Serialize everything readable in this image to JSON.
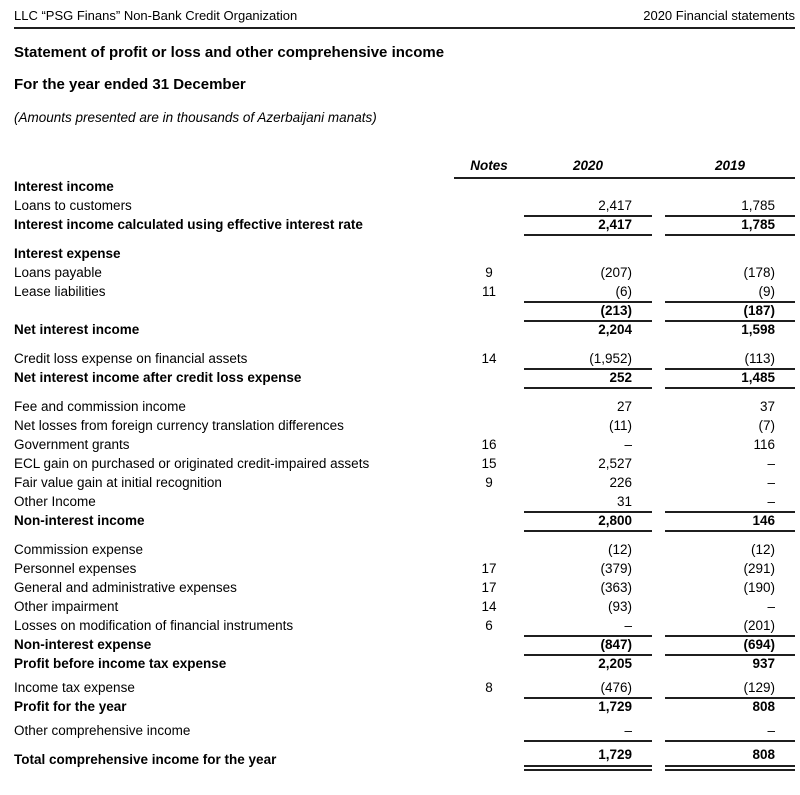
{
  "colors": {
    "background": "#ffffff",
    "text": "#000000",
    "rule_line": "#1f1f1f"
  },
  "header": {
    "left": "LLC “PSG Finans” Non-Bank Credit Organization",
    "right": "2020 Financial statements"
  },
  "title": "Statement of profit or loss and other comprehensive income",
  "subtitle": "For the year ended 31 December",
  "amounts_note": "(Amounts presented are in thousands of Azerbaijani manats)",
  "table": {
    "columns": {
      "notes": "Notes",
      "y2020": "2020",
      "y2019": "2019"
    },
    "rows": [
      {
        "label": "Interest income",
        "note": "",
        "v2020": "",
        "v2019": "",
        "bold": true,
        "underline": false,
        "double_underline": false,
        "gap": ""
      },
      {
        "label": "Loans to customers",
        "note": "",
        "v2020": "2,417",
        "v2019": "1,785",
        "bold": false,
        "underline": true,
        "double_underline": false,
        "gap": ""
      },
      {
        "label": "Interest income calculated using effective interest rate",
        "note": "",
        "v2020": "2,417",
        "v2019": "1,785",
        "bold": true,
        "underline": true,
        "double_underline": false,
        "gap": ""
      },
      {
        "label": "Interest expense",
        "note": "",
        "v2020": "",
        "v2019": "",
        "bold": true,
        "underline": false,
        "double_underline": false,
        "gap": "lg"
      },
      {
        "label": "Loans payable",
        "note": "9",
        "v2020": "(207)",
        "v2019": "(178)",
        "bold": false,
        "underline": false,
        "double_underline": false,
        "gap": ""
      },
      {
        "label": "Lease liabilities",
        "note": "11",
        "v2020": "(6)",
        "v2019": "(9)",
        "bold": false,
        "underline": true,
        "double_underline": false,
        "gap": ""
      },
      {
        "label": "",
        "note": "",
        "v2020": "(213)",
        "v2019": "(187)",
        "bold": true,
        "underline": true,
        "double_underline": false,
        "gap": ""
      },
      {
        "label": "Net interest income",
        "note": "",
        "v2020": "2,204",
        "v2019": "1,598",
        "bold": true,
        "underline": false,
        "double_underline": false,
        "gap": ""
      },
      {
        "label": "Credit loss expense on financial assets",
        "note": "14",
        "v2020": "(1,952)",
        "v2019": "(113)",
        "bold": false,
        "underline": true,
        "double_underline": false,
        "gap": "lg"
      },
      {
        "label": "Net interest income after credit loss expense",
        "note": "",
        "v2020": "252",
        "v2019": "1,485",
        "bold": true,
        "underline": true,
        "double_underline": false,
        "gap": ""
      },
      {
        "label": "Fee and commission income",
        "note": "",
        "v2020": "27",
        "v2019": "37",
        "bold": false,
        "underline": false,
        "double_underline": false,
        "gap": "lg"
      },
      {
        "label": "Net losses from foreign currency translation differences",
        "note": "",
        "v2020": "(11)",
        "v2019": "(7)",
        "bold": false,
        "underline": false,
        "double_underline": false,
        "gap": ""
      },
      {
        "label": "Government grants",
        "note": "16",
        "v2020": "–",
        "v2019": "116",
        "bold": false,
        "underline": false,
        "double_underline": false,
        "gap": ""
      },
      {
        "label": "ECL gain on purchased or originated credit-impaired assets",
        "note": "15",
        "v2020": "2,527",
        "v2019": "–",
        "bold": false,
        "underline": false,
        "double_underline": false,
        "gap": ""
      },
      {
        "label": "Fair value gain at initial recognition",
        "note": "9",
        "v2020": "226",
        "v2019": "–",
        "bold": false,
        "underline": false,
        "double_underline": false,
        "gap": ""
      },
      {
        "label": "Other Income",
        "note": "",
        "v2020": "31",
        "v2019": "–",
        "bold": false,
        "underline": true,
        "double_underline": false,
        "gap": ""
      },
      {
        "label": "Non-interest income",
        "note": "",
        "v2020": "2,800",
        "v2019": "146",
        "bold": true,
        "underline": true,
        "double_underline": false,
        "gap": ""
      },
      {
        "label": "Commission expense",
        "note": "",
        "v2020": "(12)",
        "v2019": "(12)",
        "bold": false,
        "underline": false,
        "double_underline": false,
        "gap": "lg"
      },
      {
        "label": "Personnel expenses",
        "note": "17",
        "v2020": "(379)",
        "v2019": "(291)",
        "bold": false,
        "underline": false,
        "double_underline": false,
        "gap": ""
      },
      {
        "label": "General and administrative expenses",
        "note": "17",
        "v2020": "(363)",
        "v2019": "(190)",
        "bold": false,
        "underline": false,
        "double_underline": false,
        "gap": ""
      },
      {
        "label": "Other impairment",
        "note": "14",
        "v2020": "(93)",
        "v2019": "–",
        "bold": false,
        "underline": false,
        "double_underline": false,
        "gap": ""
      },
      {
        "label": "Losses on modification of financial instruments",
        "note": "6",
        "v2020": "–",
        "v2019": "(201)",
        "bold": false,
        "underline": true,
        "double_underline": false,
        "gap": ""
      },
      {
        "label": "Non-interest expense",
        "note": "",
        "v2020": "(847)",
        "v2019": "(694)",
        "bold": true,
        "underline": true,
        "double_underline": false,
        "gap": ""
      },
      {
        "label": "Profit before income tax expense",
        "note": "",
        "v2020": "2,205",
        "v2019": "937",
        "bold": true,
        "underline": false,
        "double_underline": false,
        "gap": ""
      },
      {
        "label": "Income tax expense",
        "note": "8",
        "v2020": "(476)",
        "v2019": "(129)",
        "bold": false,
        "underline": true,
        "double_underline": false,
        "gap": "sm"
      },
      {
        "label": "Profit for the year",
        "note": "",
        "v2020": "1,729",
        "v2019": "808",
        "bold": true,
        "underline": false,
        "double_underline": false,
        "gap": ""
      },
      {
        "label": "Other comprehensive income",
        "note": "",
        "v2020": "–",
        "v2019": "–",
        "bold": false,
        "underline": true,
        "double_underline": false,
        "gap": "sm"
      },
      {
        "label": "Total comprehensive income for the year",
        "note": "",
        "v2020": "1,729",
        "v2019": "808",
        "bold": true,
        "underline": false,
        "double_underline": true,
        "gap": "sm"
      }
    ]
  }
}
